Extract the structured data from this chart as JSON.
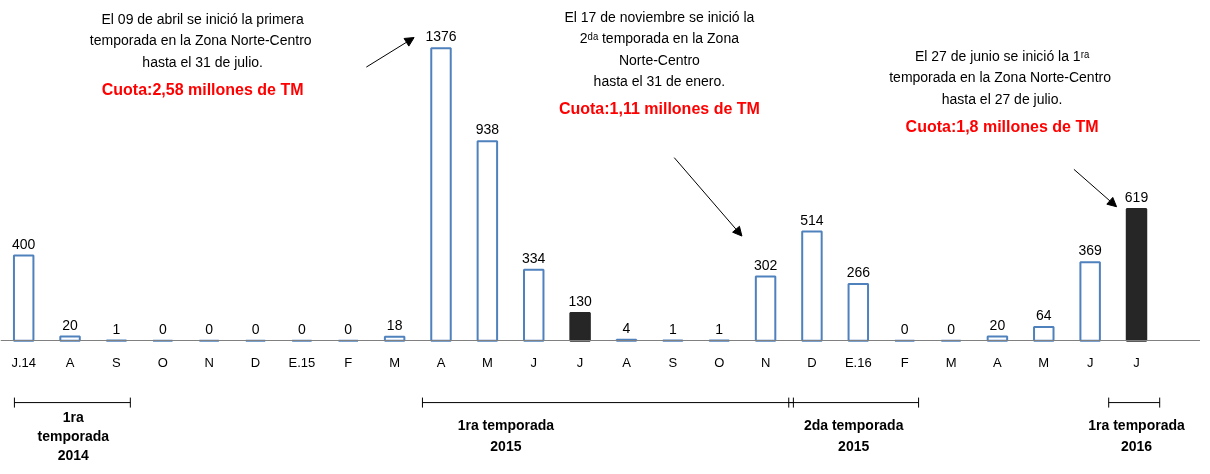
{
  "chart_data": {
    "type": "bar",
    "categories": [
      "J.14",
      "A",
      "S",
      "O",
      "N",
      "D",
      "E.15",
      "F",
      "M",
      "A",
      "M",
      "J",
      "J",
      "A",
      "S",
      "O",
      "N",
      "D",
      "E.16",
      "F",
      "M",
      "A",
      "M",
      "J",
      "J"
    ],
    "values": [
      400,
      20,
      1,
      0,
      0,
      0,
      0,
      0,
      18,
      1376,
      938,
      334,
      130,
      4,
      1,
      1,
      302,
      514,
      266,
      0,
      0,
      20,
      64,
      369,
      619
    ],
    "color": "#4f81bd",
    "colors": [
      "#4f81bd",
      "#4f81bd",
      "#4f81bd",
      "#4f81bd",
      "#4f81bd",
      "#4f81bd",
      "#4f81bd",
      "#4f81bd",
      "#4f81bd",
      "#4f81bd",
      "#4f81bd",
      "#4f81bd",
      "#262626",
      "#4f81bd",
      "#4f81bd",
      "#4f81bd",
      "#4f81bd",
      "#4f81bd",
      "#4f81bd",
      "#4f81bd",
      "#4f81bd",
      "#4f81bd",
      "#4f81bd",
      "#4f81bd",
      "#262626"
    ],
    "data_labels": true,
    "grid": false,
    "annotations": [
      "El 09 de abril se inició la primera\ntemporada en la Zona  Norte-Centro\nhasta el 31 de julio.",
      "El 17 de noviembre se inició la\n2ᵈᵃ temporada en la Zona\nNorte-Centro\nhasta el 31 de enero.",
      "El 27 de junio se inició la 1ʳᵃ\ntemporada en la Zona  Norte-Centro\nhasta el 27 de julio.",
      "Cuota:2,58 millones de TM",
      "Cuota:1,11 millones de TM",
      "Cuota:1,8 millones de TM",
      "1ra\ntemporada\n2014",
      "1ra temporada\n2015",
      "2da temporada\n2015",
      "1ra temporada\n2016"
    ]
  }
}
